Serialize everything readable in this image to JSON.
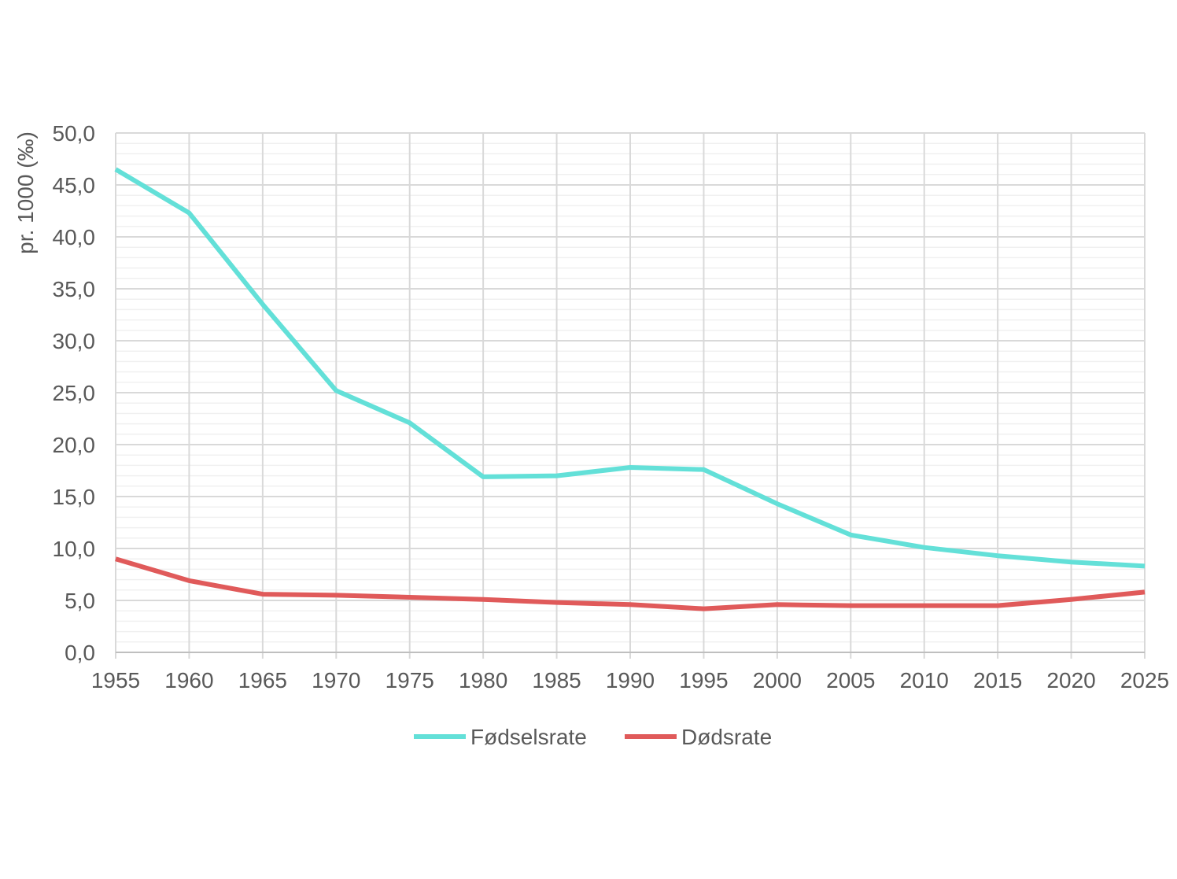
{
  "chart_data": {
    "type": "line",
    "title": "",
    "xlabel": "",
    "ylabel": "pr. 1000 (‰)",
    "x": [
      1955,
      1960,
      1965,
      1970,
      1975,
      1980,
      1985,
      1990,
      1995,
      2000,
      2005,
      2010,
      2015,
      2020,
      2025
    ],
    "x_tick_labels": [
      "1955",
      "1960",
      "1965",
      "1970",
      "1975",
      "1980",
      "1985",
      "1990",
      "1995",
      "2000",
      "2005",
      "2010",
      "2015",
      "2020",
      "2025"
    ],
    "y_tick_labels": [
      "0,0",
      "5,0",
      "10,0",
      "15,0",
      "20,0",
      "25,0",
      "30,0",
      "35,0",
      "40,0",
      "45,0",
      "50,0"
    ],
    "ylim": [
      0,
      50
    ],
    "xlim": [
      1955,
      2025
    ],
    "grid": true,
    "legend_position": "bottom",
    "series": [
      {
        "name": "Fødselsrate",
        "color": "#63e0d8",
        "values": [
          46.5,
          42.3,
          33.5,
          25.2,
          22.1,
          16.9,
          17.0,
          17.8,
          17.6,
          14.3,
          11.3,
          10.1,
          9.3,
          8.7,
          8.3
        ]
      },
      {
        "name": "Dødsrate",
        "color": "#e05a5a",
        "values": [
          9.0,
          6.9,
          5.6,
          5.5,
          5.3,
          5.1,
          4.8,
          4.6,
          4.2,
          4.6,
          4.5,
          4.5,
          4.5,
          5.1,
          5.8
        ]
      }
    ]
  },
  "colors": {
    "grid_major": "#d9d9d9",
    "grid_minor": "#f0f0f0",
    "text": "#595959"
  }
}
